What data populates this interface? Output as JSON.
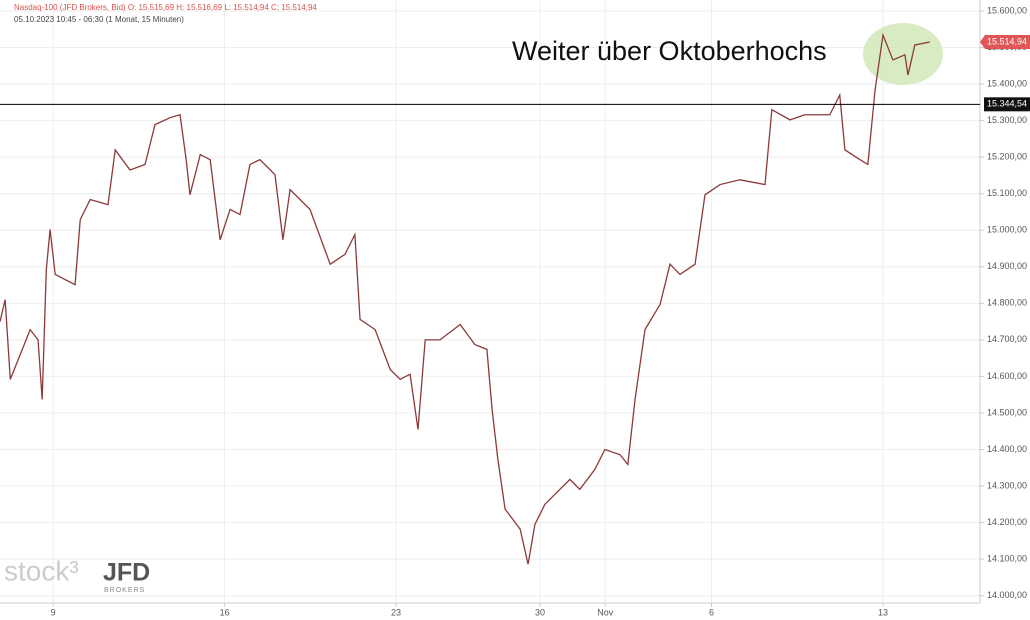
{
  "chart_data": {
    "type": "line",
    "title": "Nasdaq-100 (JFD Brokers, Bid)  O: 15.515,69  H: 15.516,69  L: 15.514,94  C: 15.514,94",
    "subtitle": "05.10.2023 10:45 - 06:30  (1 Monat, 15 Minuten)",
    "annotation": "Weiter über Oktoberhochs",
    "watermark": [
      "stock³",
      "JFD",
      "BROKERS"
    ],
    "x": [
      -1.55,
      -1.4,
      -1.25,
      -0.67,
      -0.44,
      -0.32,
      -0.2,
      -0.09,
      0.06,
      0.64,
      0.79,
      1.08,
      1.6,
      1.81,
      2.24,
      2.68,
      2.97,
      3.41,
      3.7,
      3.88,
      3.99,
      4.29,
      4.58,
      4.87,
      5.16,
      5.45,
      5.74,
      6.03,
      6.47,
      6.7,
      6.91,
      7.49,
      8.08,
      8.51,
      8.8,
      8.95,
      9.39,
      9.83,
      10.12,
      10.41,
      10.64,
      10.85,
      11.28,
      11.87,
      12.3,
      12.65,
      12.8,
      12.97,
      13.18,
      13.62,
      13.85,
      14.05,
      14.34,
      14.78,
      15.07,
      15.36,
      15.8,
      16.09,
      16.53,
      16.76,
      16.97,
      17.26,
      17.7,
      17.99,
      18.28,
      18.72,
      19.01,
      19.45,
      20.03,
      20.76,
      20.96,
      21.49,
      21.92,
      22.65,
      22.94,
      23.09,
      23.53,
      23.76,
      23.97,
      24.2,
      24.49,
      24.84,
      24.93,
      25.13,
      25.57
    ],
    "series": [
      {
        "name": "Nasdaq-100",
        "color": "#8b3a3a",
        "values": [
          14750,
          14810,
          14592,
          14728,
          14700,
          14537,
          14892,
          15002,
          14879,
          14851,
          15029,
          15084,
          15070,
          15220,
          15165,
          15180,
          15289,
          15308,
          15316,
          15193,
          15097,
          15207,
          15193,
          14974,
          15057,
          15043,
          15180,
          15193,
          15152,
          14974,
          15111,
          15057,
          14907,
          14934,
          14988,
          14756,
          14728,
          14619,
          14592,
          14606,
          14455,
          14700,
          14700,
          14742,
          14687,
          14674,
          14510,
          14373,
          14237,
          14182,
          14086,
          14195,
          14250,
          14291,
          14318,
          14291,
          14346,
          14400,
          14386,
          14359,
          14537,
          14728,
          14797,
          14907,
          14879,
          14907,
          15097,
          15125,
          15138,
          15125,
          15330,
          15302,
          15316,
          15316,
          15370,
          15220,
          15193,
          15180,
          15384,
          15534,
          15466,
          15480,
          15425,
          15507,
          15515
        ]
      }
    ],
    "xlim": [
      -1.55,
      27.03
    ],
    "xticks": [
      {
        "value": 0,
        "label": "9"
      },
      {
        "value": 5,
        "label": "16"
      },
      {
        "value": 10,
        "label": "23"
      },
      {
        "value": 14.2,
        "label": "30"
      },
      {
        "value": 16.1,
        "label": "Nov"
      },
      {
        "value": 19.2,
        "label": "6"
      },
      {
        "value": 24.2,
        "label": "13"
      }
    ],
    "ylim": [
      13980,
      15630
    ],
    "yticks": [
      {
        "value": 14000,
        "label": "14.000,00"
      },
      {
        "value": 14100,
        "label": "14.100,00"
      },
      {
        "value": 14200,
        "label": "14.200,00"
      },
      {
        "value": 14300,
        "label": "14.300,00"
      },
      {
        "value": 14400,
        "label": "14.400,00"
      },
      {
        "value": 14500,
        "label": "14.500,00"
      },
      {
        "value": 14600,
        "label": "14.600,00"
      },
      {
        "value": 14700,
        "label": "14.700,00"
      },
      {
        "value": 14800,
        "label": "14.800,00"
      },
      {
        "value": 14900,
        "label": "14.900,00"
      },
      {
        "value": 15000,
        "label": "15.000,00"
      },
      {
        "value": 15100,
        "label": "15.100,00"
      },
      {
        "value": 15200,
        "label": "15.200,00"
      },
      {
        "value": 15300,
        "label": "15.300,00"
      },
      {
        "value": 15400,
        "label": "15.400,00"
      },
      {
        "value": 15500,
        "label": "15.500,00"
      },
      {
        "value": 15600,
        "label": "15.600,00"
      }
    ],
    "hline": {
      "value": 15344.54,
      "label": "15.344,54"
    },
    "last": {
      "value": 15514.94,
      "label": "15.514,94"
    },
    "grid": true
  }
}
